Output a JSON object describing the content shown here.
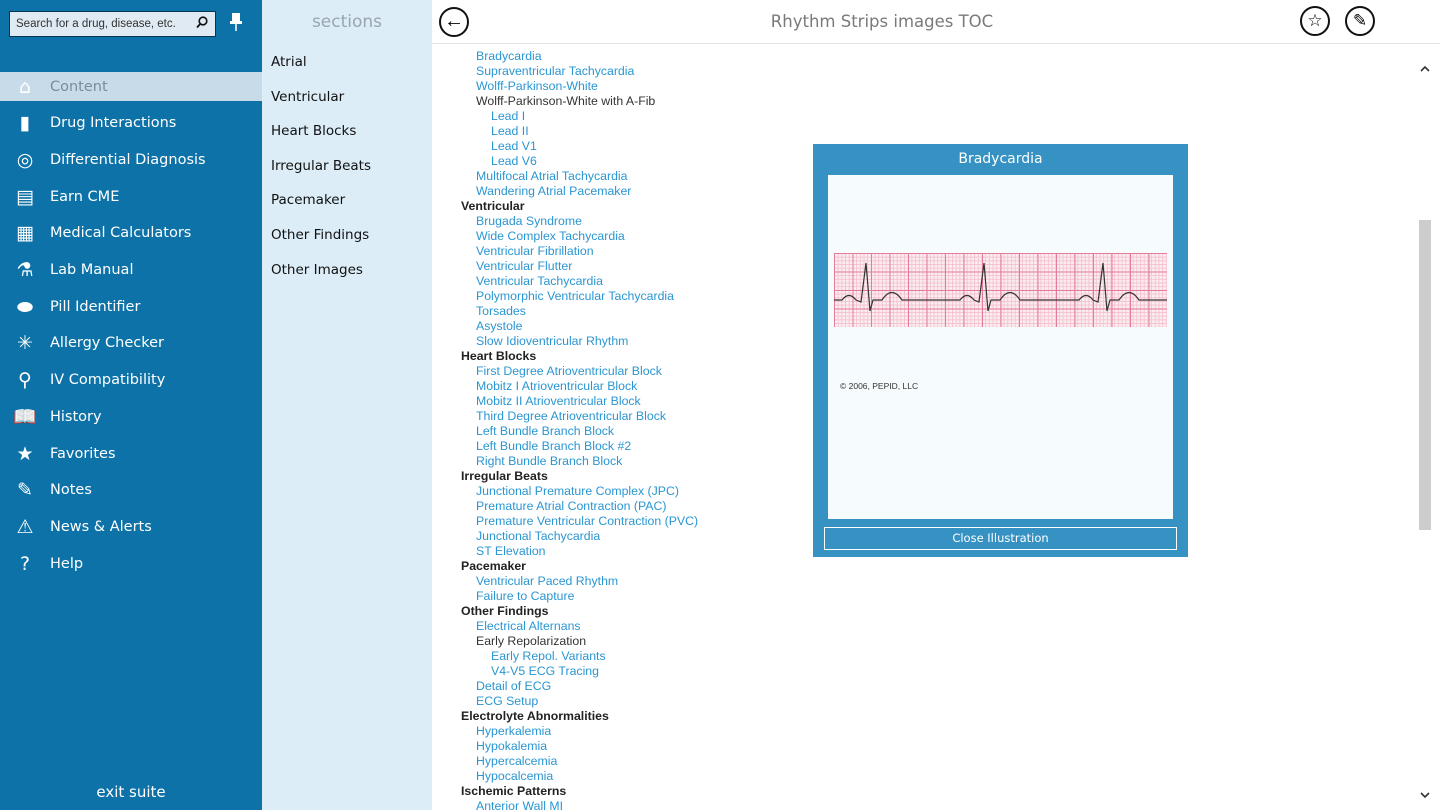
{
  "sidebar": {
    "search_placeholder": "Search for a drug, disease, etc.",
    "exit": "exit suite",
    "items": [
      {
        "label": "Content",
        "icon": "home-icon",
        "glyph": "⌂",
        "active": true
      },
      {
        "label": "Drug Interactions",
        "icon": "vial-icon",
        "glyph": "▮"
      },
      {
        "label": "Differential Diagnosis",
        "icon": "target-icon",
        "glyph": "◎"
      },
      {
        "label": "Earn CME",
        "icon": "books-icon",
        "glyph": "▤"
      },
      {
        "label": "Medical Calculators",
        "icon": "calculator-icon",
        "glyph": "▦"
      },
      {
        "label": "Lab Manual",
        "icon": "flask-icon",
        "glyph": "⚗"
      },
      {
        "label": "Pill Identifier",
        "icon": "pill-icon",
        "glyph": "⬬"
      },
      {
        "label": "Allergy Checker",
        "icon": "allergy-icon",
        "glyph": "✳"
      },
      {
        "label": "IV Compatibility",
        "icon": "iv-bag-icon",
        "glyph": "⚲"
      },
      {
        "label": "History",
        "icon": "book-icon",
        "glyph": "📖"
      },
      {
        "label": "Favorites",
        "icon": "star-icon",
        "glyph": "★"
      },
      {
        "label": "Notes",
        "icon": "paperclip-icon",
        "glyph": "✎"
      },
      {
        "label": "News & Alerts",
        "icon": "warning-icon",
        "glyph": "⚠"
      },
      {
        "label": "Help",
        "icon": "help-icon",
        "glyph": "?"
      }
    ]
  },
  "sections": {
    "title": "sections",
    "items": [
      "Atrial",
      "Ventricular",
      "Heart Blocks",
      "Irregular Beats",
      "Pacemaker",
      "Other Findings",
      "Other Images"
    ]
  },
  "header": {
    "title": "Rhythm Strips images TOC"
  },
  "toc": [
    {
      "t": "Bradycardia",
      "l": 1,
      "k": 1
    },
    {
      "t": "Supraventricular Tachycardia",
      "l": 1,
      "k": 1
    },
    {
      "t": "Wolff-Parkinson-White",
      "l": 1,
      "k": 1
    },
    {
      "t": "Wolff-Parkinson-White with A-Fib",
      "l": 1,
      "k": 0
    },
    {
      "t": "Lead I",
      "l": 2,
      "k": 1
    },
    {
      "t": "Lead II",
      "l": 2,
      "k": 1
    },
    {
      "t": "Lead V1",
      "l": 2,
      "k": 1
    },
    {
      "t": "Lead V6",
      "l": 2,
      "k": 1
    },
    {
      "t": "Multifocal Atrial Tachycardia",
      "l": 1,
      "k": 1
    },
    {
      "t": "Wandering Atrial Pacemaker",
      "l": 1,
      "k": 1
    },
    {
      "t": "Ventricular",
      "l": 0,
      "k": 0
    },
    {
      "t": "Brugada Syndrome",
      "l": 1,
      "k": 1
    },
    {
      "t": "Wide Complex Tachycardia",
      "l": 1,
      "k": 1
    },
    {
      "t": "Ventricular Fibrillation",
      "l": 1,
      "k": 1
    },
    {
      "t": "Ventricular Flutter",
      "l": 1,
      "k": 1
    },
    {
      "t": "Ventricular Tachycardia",
      "l": 1,
      "k": 1
    },
    {
      "t": "Polymorphic Ventricular Tachycardia",
      "l": 1,
      "k": 1
    },
    {
      "t": "Torsades",
      "l": 1,
      "k": 1
    },
    {
      "t": "Asystole",
      "l": 1,
      "k": 1
    },
    {
      "t": "Slow Idioventricular Rhythm",
      "l": 1,
      "k": 1
    },
    {
      "t": "Heart Blocks",
      "l": 0,
      "k": 0
    },
    {
      "t": "First Degree Atrioventricular Block",
      "l": 1,
      "k": 1
    },
    {
      "t": "Mobitz I Atrioventricular Block",
      "l": 1,
      "k": 1
    },
    {
      "t": "Mobitz II Atrioventricular Block",
      "l": 1,
      "k": 1
    },
    {
      "t": "Third Degree Atrioventricular Block",
      "l": 1,
      "k": 1
    },
    {
      "t": "Left Bundle Branch Block",
      "l": 1,
      "k": 1
    },
    {
      "t": "Left Bundle Branch Block #2",
      "l": 1,
      "k": 1
    },
    {
      "t": "Right Bundle Branch Block",
      "l": 1,
      "k": 1
    },
    {
      "t": "Irregular Beats",
      "l": 0,
      "k": 0
    },
    {
      "t": "Junctional Premature Complex (JPC)",
      "l": 1,
      "k": 1
    },
    {
      "t": "Premature Atrial Contraction (PAC)",
      "l": 1,
      "k": 1
    },
    {
      "t": "Premature Ventricular Contraction (PVC)",
      "l": 1,
      "k": 1
    },
    {
      "t": "Junctional Tachycardia",
      "l": 1,
      "k": 1
    },
    {
      "t": "ST Elevation",
      "l": 1,
      "k": 1
    },
    {
      "t": "Pacemaker",
      "l": 0,
      "k": 0
    },
    {
      "t": "Ventricular Paced Rhythm",
      "l": 1,
      "k": 1
    },
    {
      "t": "Failure to Capture",
      "l": 1,
      "k": 1
    },
    {
      "t": "Other Findings",
      "l": 0,
      "k": 0
    },
    {
      "t": "Electrical Alternans",
      "l": 1,
      "k": 1
    },
    {
      "t": "Early Repolarization",
      "l": 1,
      "k": 0
    },
    {
      "t": "Early Repol. Variants",
      "l": 2,
      "k": 1
    },
    {
      "t": "V4-V5 ECG Tracing",
      "l": 2,
      "k": 1
    },
    {
      "t": "Detail of ECG",
      "l": 1,
      "k": 1
    },
    {
      "t": "ECG Setup",
      "l": 1,
      "k": 1
    },
    {
      "t": "Electrolyte Abnormalities",
      "l": 0,
      "k": 0
    },
    {
      "t": "Hyperkalemia",
      "l": 1,
      "k": 1
    },
    {
      "t": "Hypokalemia",
      "l": 1,
      "k": 1
    },
    {
      "t": "Hypercalcemia",
      "l": 1,
      "k": 1
    },
    {
      "t": "Hypocalcemia",
      "l": 1,
      "k": 1
    },
    {
      "t": "Ischemic Patterns",
      "l": 0,
      "k": 0
    },
    {
      "t": "Anterior Wall MI",
      "l": 1,
      "k": 1
    }
  ],
  "modal": {
    "title": "Bradycardia",
    "copyright": "© 2006, PEPID, LLC",
    "close": "Close Illustration"
  }
}
